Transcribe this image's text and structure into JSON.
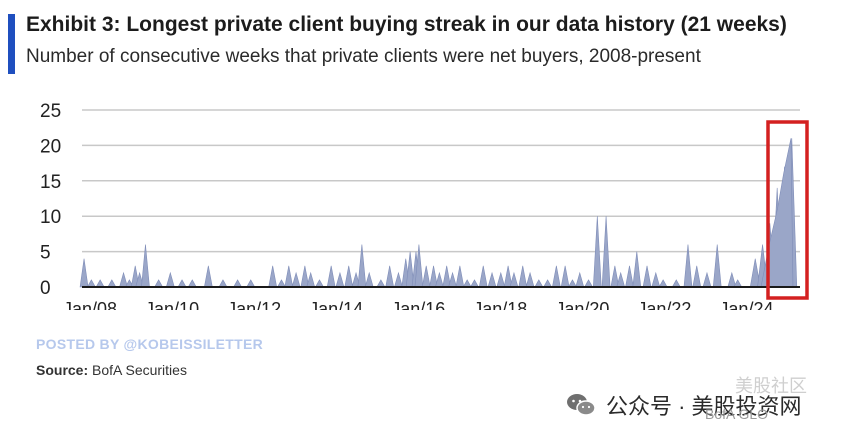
{
  "header": {
    "title": "Exhibit 3: Longest private client buying streak in our data history (21 weeks)",
    "subtitle": "Number of consecutive weeks that private clients were net buyers, 2008-present"
  },
  "footer": {
    "watermark": "POSTED BY @KOBEISSILETTER",
    "source_label": "Source:",
    "source_text": "BofA Securities",
    "wechat_text": "公众号 · 美股投资网",
    "bofa_tag": "BofA GLO",
    "corner_watermark": "美股社区"
  },
  "colors": {
    "accent_bar": "#1f4fbf",
    "series": "#9aa6c8",
    "highlight_box": "#d42020",
    "gridline": "#c8c8c8"
  },
  "chart_data": {
    "type": "area",
    "title": "Exhibit 3: Longest private client buying streak in our data history (21 weeks)",
    "subtitle": "Number of consecutive weeks that private clients were net buyers, 2008-present",
    "xlabel": "",
    "ylabel": "",
    "x_ticks": [
      "Jan/08",
      "Jan/10",
      "Jan/12",
      "Jan/14",
      "Jan/16",
      "Jan/18",
      "Jan/20",
      "Jan/22",
      "Jan/24"
    ],
    "xlim": [
      2008.0,
      2025.5
    ],
    "ylim": [
      0,
      25
    ],
    "y_ticks": [
      0,
      5,
      10,
      15,
      20,
      25
    ],
    "grid": true,
    "series": [
      {
        "values_note": "",
        "spikes": [
          [
            2008.05,
            4
          ],
          [
            2008.3,
            1
          ],
          [
            2008.6,
            1
          ],
          [
            2009.0,
            1
          ],
          [
            2009.4,
            2
          ],
          [
            2009.6,
            1
          ],
          [
            2009.8,
            3
          ],
          [
            2009.95,
            2
          ],
          [
            2010.15,
            6
          ],
          [
            2010.6,
            1
          ],
          [
            2011.0,
            2
          ],
          [
            2011.4,
            1
          ],
          [
            2011.75,
            1
          ],
          [
            2012.3,
            3
          ],
          [
            2012.8,
            1
          ],
          [
            2013.3,
            1
          ],
          [
            2013.75,
            1
          ],
          [
            2014.5,
            3
          ],
          [
            2014.8,
            1
          ],
          [
            2015.05,
            3
          ],
          [
            2015.3,
            2
          ],
          [
            2015.6,
            3
          ],
          [
            2015.8,
            2
          ],
          [
            2016.1,
            1
          ],
          [
            2016.5,
            3
          ],
          [
            2016.8,
            2
          ],
          [
            2017.1,
            3
          ],
          [
            2017.35,
            2
          ],
          [
            2017.55,
            6
          ],
          [
            2017.8,
            2
          ],
          [
            2018.2,
            1
          ],
          [
            2018.5,
            3
          ],
          [
            2018.8,
            2
          ],
          [
            2019.05,
            4
          ],
          [
            2019.2,
            5
          ],
          [
            2019.4,
            5
          ],
          [
            2019.5,
            6
          ],
          [
            2019.75,
            3
          ],
          [
            2020.0,
            3
          ],
          [
            2020.2,
            2
          ],
          [
            2020.45,
            3
          ],
          [
            2020.65,
            2
          ],
          [
            2020.9,
            3
          ],
          [
            2021.15,
            1
          ],
          [
            2021.4,
            1
          ],
          [
            2021.7,
            3
          ],
          [
            2022.0,
            2
          ],
          [
            2022.3,
            2
          ],
          [
            2022.55,
            3
          ],
          [
            2022.75,
            2
          ],
          [
            2023.05,
            3
          ],
          [
            2023.3,
            2
          ],
          [
            2023.6,
            1
          ],
          [
            2023.9,
            1
          ],
          [
            2024.2,
            3
          ],
          [
            2024.5,
            3
          ],
          [
            2024.75,
            1
          ],
          [
            2025.0,
            2
          ],
          [
            2025.3,
            1
          ],
          [
            2025.6,
            10
          ],
          [
            2025.9,
            10
          ],
          [
            2026.2,
            3
          ],
          [
            2026.4,
            2
          ],
          [
            2026.7,
            3
          ],
          [
            2026.95,
            5
          ],
          [
            2027.3,
            3
          ],
          [
            2027.6,
            2
          ],
          [
            2027.85,
            1
          ],
          [
            2028.3,
            1
          ],
          [
            2028.7,
            6
          ],
          [
            2029.0,
            3
          ],
          [
            2029.35,
            2
          ],
          [
            2029.7,
            6
          ],
          [
            2030.2,
            2
          ],
          [
            2030.4,
            1
          ],
          [
            2031.0,
            4
          ],
          [
            2031.25,
            6
          ],
          [
            2031.5,
            9
          ],
          [
            2031.75,
            14
          ],
          [
            2032.0,
            17
          ],
          [
            2032.25,
            21
          ]
        ]
      }
    ],
    "highlight_box_note": "Longest streak (21 weeks)"
  }
}
